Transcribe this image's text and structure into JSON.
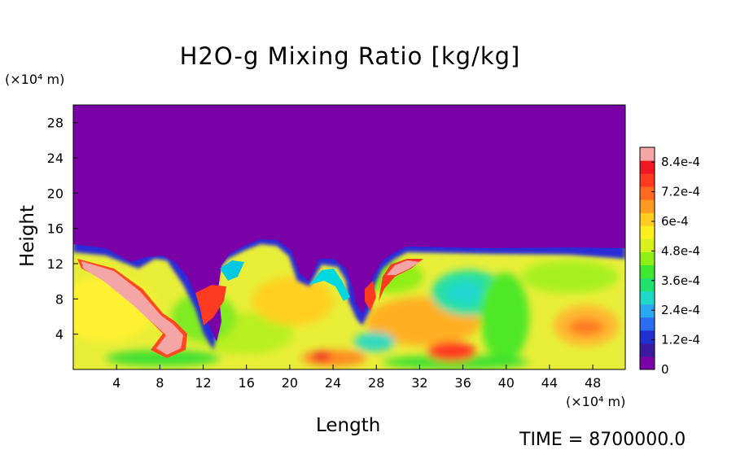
{
  "chart_data": {
    "type": "heatmap",
    "title": "H2O-g Mixing Ratio [kg/kg]",
    "xlabel": "Length",
    "ylabel": "Height",
    "x_unit": "(×10⁴ m)",
    "y_unit": "(×10⁴ m)",
    "xlim": [
      0,
      51
    ],
    "ylim": [
      0,
      30
    ],
    "x_ticks": [
      "4",
      "8",
      "12",
      "16",
      "20",
      "24",
      "28",
      "32",
      "36",
      "40",
      "44",
      "48"
    ],
    "y_ticks": [
      "4",
      "8",
      "12",
      "16",
      "20",
      "24",
      "28"
    ],
    "colorbar": {
      "range": [
        0,
        0.0009
      ],
      "labels": [
        "0",
        "1.2e-4",
        "2.4e-4",
        "3.6e-4",
        "4.8e-4",
        "6e-4",
        "7.2e-4",
        "8.4e-4"
      ],
      "colors": [
        "#7a00a8",
        "#3a1aa0",
        "#1f2fd0",
        "#2a6cf2",
        "#2aa7f0",
        "#20d8c8",
        "#20e070",
        "#3ee82e",
        "#90ee18",
        "#d8f020",
        "#ffee20",
        "#ffcc22",
        "#ff9a22",
        "#ff6a20",
        "#ff3a22",
        "#ee1822",
        "#f4a6a6"
      ]
    },
    "field_description_points": {
      "dry_upper_layer_top": 30,
      "moist_layer_top_approx": 13.5
    },
    "time_label": "TIME = 8700000.0"
  },
  "colors": {
    "dry": "#7a00a8",
    "moist_base": "#f2f040",
    "saturated": "#f4a6a6"
  }
}
